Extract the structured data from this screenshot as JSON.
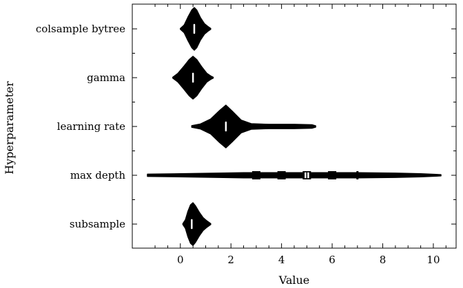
{
  "chart_data": {
    "type": "violin",
    "orientation": "horizontal",
    "xlabel": "Value",
    "ylabel": "Hyperparameter",
    "xlim": [
      -1.9,
      10.9
    ],
    "x_ticks": [
      0,
      2,
      4,
      6,
      8,
      10
    ],
    "categories": [
      "colsample_bytree",
      "gamma",
      "learning_rate",
      "max_depth",
      "subsample"
    ],
    "category_labels": [
      "colsample bytree",
      "gamma",
      "learning rate",
      "max depth",
      "subsample"
    ],
    "violin_color": "#000000",
    "median_marker_color": "#ffffff",
    "violins": [
      {
        "name": "colsample_bytree",
        "min": 0.0,
        "max": 1.2,
        "median": 0.55,
        "profile": [
          [
            0.0,
            0.02
          ],
          [
            0.15,
            0.18
          ],
          [
            0.3,
            0.55
          ],
          [
            0.45,
            0.88
          ],
          [
            0.55,
            1.0
          ],
          [
            0.65,
            0.88
          ],
          [
            0.8,
            0.52
          ],
          [
            0.95,
            0.25
          ],
          [
            1.1,
            0.1
          ],
          [
            1.2,
            0.02
          ]
        ]
      },
      {
        "name": "gamma",
        "min": -0.3,
        "max": 1.3,
        "median": 0.5,
        "profile": [
          [
            -0.3,
            0.02
          ],
          [
            -0.1,
            0.2
          ],
          [
            0.15,
            0.55
          ],
          [
            0.35,
            0.85
          ],
          [
            0.5,
            1.0
          ],
          [
            0.65,
            0.85
          ],
          [
            0.85,
            0.5
          ],
          [
            1.05,
            0.2
          ],
          [
            1.2,
            0.08
          ],
          [
            1.3,
            0.02
          ]
        ]
      },
      {
        "name": "learning_rate",
        "min": 0.45,
        "max": 5.35,
        "median": 1.8,
        "profile": [
          [
            0.45,
            0.04
          ],
          [
            0.8,
            0.12
          ],
          [
            1.2,
            0.35
          ],
          [
            1.55,
            0.75
          ],
          [
            1.8,
            1.0
          ],
          [
            2.05,
            0.72
          ],
          [
            2.4,
            0.3
          ],
          [
            2.8,
            0.13
          ],
          [
            3.5,
            0.1
          ],
          [
            4.5,
            0.1
          ],
          [
            5.2,
            0.08
          ],
          [
            5.35,
            0.03
          ]
        ]
      },
      {
        "name": "max_depth",
        "min": -1.3,
        "max": 10.3,
        "median": 5.0,
        "profile": [
          [
            -1.3,
            0.05
          ],
          [
            0.0,
            0.07
          ],
          [
            1.5,
            0.1
          ],
          [
            2.5,
            0.12
          ],
          [
            3.0,
            0.12
          ],
          [
            4.0,
            0.12
          ],
          [
            5.0,
            0.12
          ],
          [
            6.0,
            0.12
          ],
          [
            7.0,
            0.12
          ],
          [
            8.5,
            0.1
          ],
          [
            9.5,
            0.07
          ],
          [
            10.3,
            0.03
          ]
        ],
        "markers": [
          {
            "x": 3,
            "shape": "square"
          },
          {
            "x": 4,
            "shape": "square"
          },
          {
            "x": 5,
            "shape": "square"
          },
          {
            "x": 6,
            "shape": "square"
          },
          {
            "x": 7,
            "shape": "bar"
          }
        ]
      },
      {
        "name": "subsample",
        "min": 0.1,
        "max": 1.2,
        "median": 0.45,
        "profile": [
          [
            0.1,
            0.02
          ],
          [
            0.2,
            0.2
          ],
          [
            0.3,
            0.6
          ],
          [
            0.4,
            0.9
          ],
          [
            0.5,
            1.0
          ],
          [
            0.6,
            0.85
          ],
          [
            0.75,
            0.55
          ],
          [
            0.9,
            0.3
          ],
          [
            1.05,
            0.15
          ],
          [
            1.2,
            0.02
          ]
        ]
      }
    ]
  }
}
